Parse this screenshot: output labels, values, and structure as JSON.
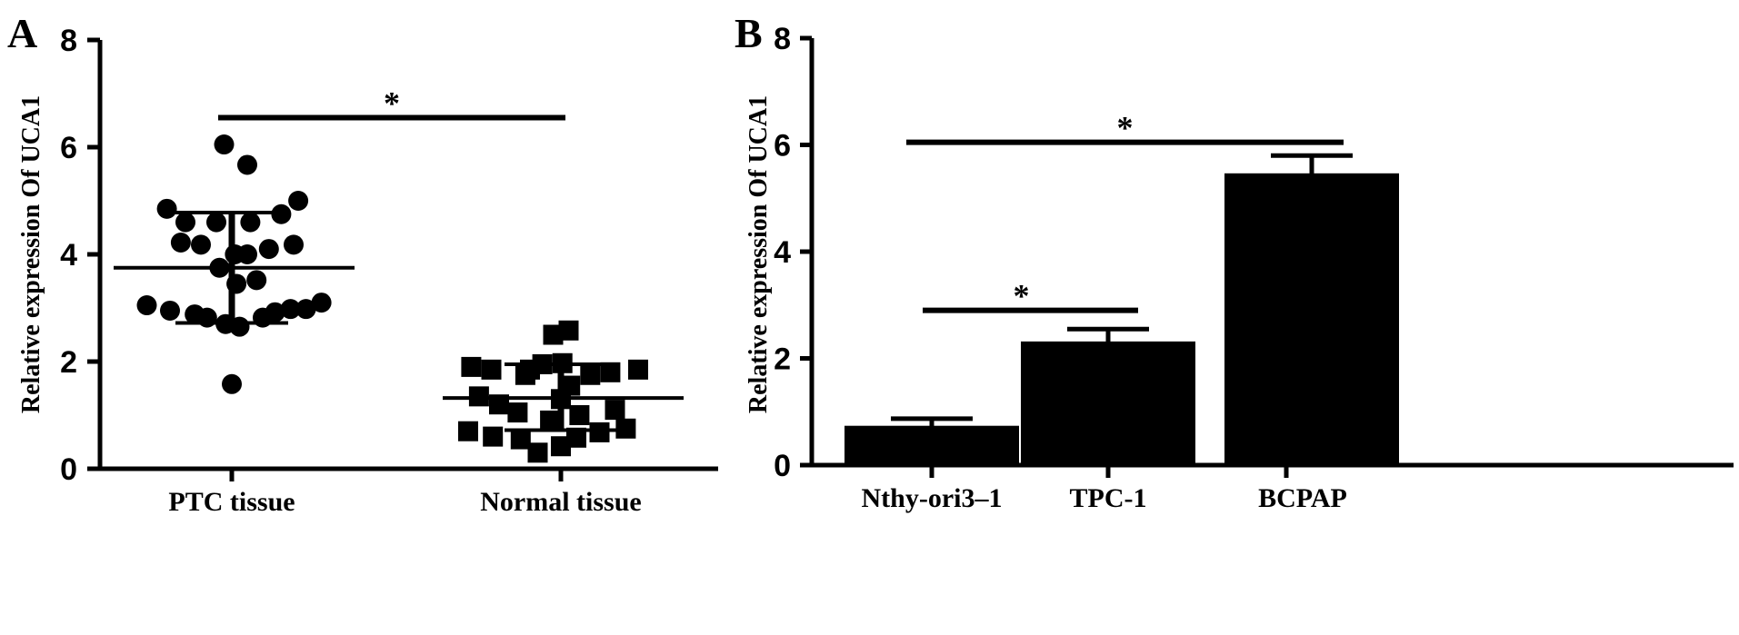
{
  "chart_data": [
    {
      "type": "scatter",
      "panel_label": "A",
      "ylabel": "Relative expression Of UCA1",
      "xlabel": "",
      "ylim": [
        0,
        8
      ],
      "yticks": [
        0,
        2,
        4,
        6,
        8
      ],
      "categories": [
        "PTC tissue",
        "Normal tissue"
      ],
      "series": [
        {
          "category": "PTC tissue",
          "mean": 3.75,
          "sd_low": 2.72,
          "sd_high": 4.78,
          "points": [
            {
              "offset": -0.55,
              "y": 3.05
            },
            {
              "offset": -0.42,
              "y": 4.85
            },
            {
              "offset": -0.4,
              "y": 2.95
            },
            {
              "offset": -0.3,
              "y": 4.6
            },
            {
              "offset": -0.33,
              "y": 4.22
            },
            {
              "offset": -0.24,
              "y": 2.88
            },
            {
              "offset": -0.2,
              "y": 4.18
            },
            {
              "offset": -0.16,
              "y": 2.82
            },
            {
              "offset": -0.1,
              "y": 4.6
            },
            {
              "offset": -0.08,
              "y": 3.75
            },
            {
              "offset": -0.04,
              "y": 2.7
            },
            {
              "offset": 0.02,
              "y": 4.0
            },
            {
              "offset": 0.03,
              "y": 3.45
            },
            {
              "offset": 0.05,
              "y": 2.65
            },
            {
              "offset": -0.05,
              "y": 6.05
            },
            {
              "offset": 0.1,
              "y": 5.67
            },
            {
              "offset": 0.1,
              "y": 4.0
            },
            {
              "offset": 0.12,
              "y": 4.6
            },
            {
              "offset": 0.16,
              "y": 3.52
            },
            {
              "offset": 0.2,
              "y": 2.82
            },
            {
              "offset": 0.24,
              "y": 4.1
            },
            {
              "offset": 0.28,
              "y": 2.92
            },
            {
              "offset": 0.32,
              "y": 4.75
            },
            {
              "offset": 0.38,
              "y": 2.98
            },
            {
              "offset": 0.4,
              "y": 4.18
            },
            {
              "offset": 0.43,
              "y": 5.0
            },
            {
              "offset": 0.48,
              "y": 2.98
            },
            {
              "offset": 0.58,
              "y": 3.1
            },
            {
              "offset": 0.0,
              "y": 1.58
            }
          ]
        },
        {
          "category": "Normal tissue",
          "mean": 1.32,
          "sd_low": 0.72,
          "sd_high": 1.95,
          "points": [
            {
              "offset": -0.58,
              "y": 1.9
            },
            {
              "offset": -0.6,
              "y": 0.7
            },
            {
              "offset": -0.53,
              "y": 1.35
            },
            {
              "offset": -0.45,
              "y": 1.85
            },
            {
              "offset": -0.44,
              "y": 0.6
            },
            {
              "offset": -0.4,
              "y": 1.2
            },
            {
              "offset": -0.28,
              "y": 1.05
            },
            {
              "offset": -0.26,
              "y": 0.55
            },
            {
              "offset": -0.23,
              "y": 1.75
            },
            {
              "offset": -0.2,
              "y": 1.85
            },
            {
              "offset": -0.15,
              "y": 0.3
            },
            {
              "offset": -0.12,
              "y": 1.95
            },
            {
              "offset": -0.05,
              "y": 2.5
            },
            {
              "offset": -0.07,
              "y": 0.9
            },
            {
              "offset": 0.0,
              "y": 1.3
            },
            {
              "offset": 0.0,
              "y": 0.42
            },
            {
              "offset": 0.01,
              "y": 1.97
            },
            {
              "offset": 0.05,
              "y": 2.58
            },
            {
              "offset": 0.06,
              "y": 1.55
            },
            {
              "offset": 0.1,
              "y": 0.58
            },
            {
              "offset": 0.12,
              "y": 1.0
            },
            {
              "offset": 0.19,
              "y": 1.75
            },
            {
              "offset": 0.25,
              "y": 0.68
            },
            {
              "offset": 0.32,
              "y": 1.8
            },
            {
              "offset": 0.35,
              "y": 1.1
            },
            {
              "offset": 0.42,
              "y": 0.75
            },
            {
              "offset": 0.5,
              "y": 1.85
            }
          ]
        }
      ],
      "significance": [
        {
          "from": "PTC tissue",
          "to": "Normal tissue",
          "y": 6.55,
          "label": "*"
        }
      ]
    },
    {
      "type": "bar",
      "panel_label": "B",
      "ylabel": "Relative expression Of UCA1",
      "xlabel": "",
      "ylim": [
        0,
        8
      ],
      "yticks": [
        0,
        2,
        4,
        6,
        8
      ],
      "categories": [
        "Nthy-ori3–1",
        "TPC-1",
        "BCPAP"
      ],
      "values": [
        0.72,
        2.3,
        5.45
      ],
      "error": [
        0.15,
        0.25,
        0.35
      ],
      "significance": [
        {
          "from": "Nthy-ori3–1",
          "to": "TPC-1",
          "y": 2.9,
          "label": "*"
        },
        {
          "from": "Nthy-ori3–1",
          "to": "BCPAP",
          "y": 6.05,
          "label": "*"
        }
      ]
    }
  ]
}
